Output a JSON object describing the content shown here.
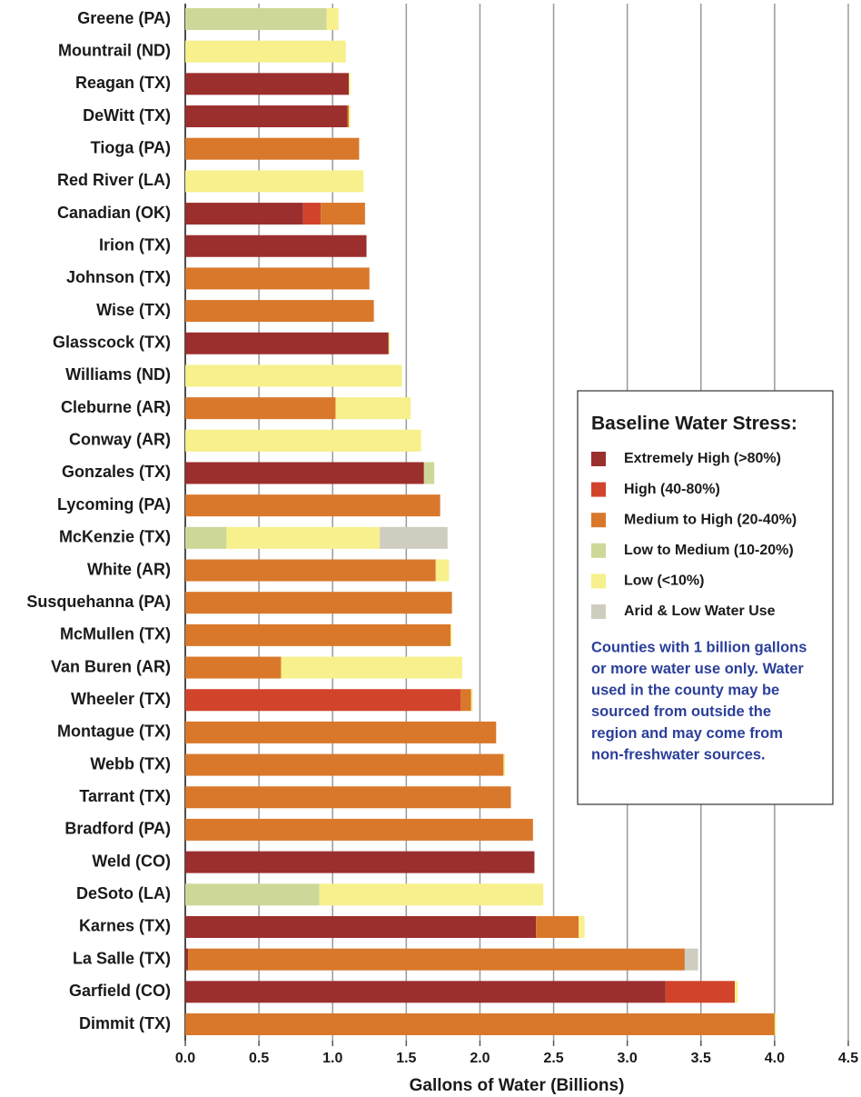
{
  "chart_data": {
    "type": "stacked_barh",
    "x_label": "Gallons of Water (Billions)",
    "legend_title": "Baseline Water Stress:",
    "legend_position": "right",
    "annotation_lines": [
      "Counties with 1 billion gallons",
      "or more water use only. Water",
      "used in the county may be",
      "sourced from outside the",
      "region and may come from",
      "non-freshwater sources."
    ],
    "categories": [
      "Greene (PA)",
      "Mountrail (ND)",
      "Reagan (TX)",
      "DeWitt (TX)",
      "Tioga (PA)",
      "Red River (LA)",
      "Canadian (OK)",
      "Irion (TX)",
      "Johnson (TX)",
      "Wise (TX)",
      "Glasscock (TX)",
      "Williams (ND)",
      "Cleburne (AR)",
      "Conway (AR)",
      "Gonzales (TX)",
      "Lycoming (PA)",
      "McKenzie (TX)",
      "White (AR)",
      "Susquehanna (PA)",
      "McMullen (TX)",
      "Van Buren (AR)",
      "Wheeler (TX)",
      "Montague (TX)",
      "Webb (TX)",
      "Tarrant (TX)",
      "Bradford (PA)",
      "Weld (CO)",
      "DeSoto (LA)",
      "Karnes (TX)",
      "La Salle (TX)",
      "Garfield (CO)",
      "Dimmit (TX)"
    ],
    "series": [
      {
        "name": "Extremely High (>80%)",
        "color": "#9b2f2e",
        "values": [
          null,
          null,
          1.11,
          1.1,
          null,
          null,
          0.8,
          1.23,
          null,
          null,
          1.38,
          null,
          null,
          null,
          1.62,
          null,
          null,
          null,
          null,
          null,
          null,
          null,
          null,
          null,
          null,
          null,
          2.37,
          null,
          2.38,
          0.02,
          3.26,
          null
        ]
      },
      {
        "name": "High (40-80%)",
        "color": "#d2432b",
        "values": [
          null,
          null,
          null,
          null,
          null,
          null,
          0.12,
          null,
          null,
          null,
          null,
          null,
          null,
          null,
          null,
          null,
          null,
          null,
          null,
          null,
          null,
          1.87,
          null,
          null,
          null,
          null,
          null,
          null,
          null,
          null,
          0.47,
          null
        ]
      },
      {
        "name": "Medium to High (20-40%)",
        "color": "#d9782b",
        "values": [
          null,
          null,
          null,
          0.01,
          1.18,
          null,
          0.3,
          null,
          1.25,
          1.28,
          null,
          null,
          1.02,
          null,
          null,
          1.73,
          null,
          1.7,
          1.81,
          1.8,
          0.65,
          0.07,
          2.11,
          2.16,
          2.21,
          2.36,
          null,
          null,
          0.29,
          3.37,
          null,
          4.0
        ]
      },
      {
        "name": "Low to Medium (10-20%)",
        "color": "#cdd898",
        "values": [
          0.96,
          null,
          null,
          null,
          null,
          null,
          null,
          null,
          null,
          null,
          null,
          null,
          null,
          null,
          0.07,
          null,
          0.28,
          null,
          null,
          null,
          null,
          null,
          null,
          null,
          null,
          null,
          null,
          0.91,
          null,
          null,
          null,
          null
        ]
      },
      {
        "name": "Low (<10%)",
        "color": "#f7f08c",
        "values": [
          0.08,
          1.09,
          0.01,
          0.01,
          null,
          1.21,
          null,
          null,
          null,
          null,
          0.01,
          1.47,
          0.51,
          1.6,
          null,
          null,
          1.04,
          0.09,
          null,
          0.01,
          1.23,
          0.01,
          null,
          0.01,
          null,
          null,
          null,
          1.52,
          0.04,
          null,
          0.02,
          0.01
        ]
      },
      {
        "name": "Arid & Low Water Use",
        "color": "#cfcdbf",
        "values": [
          null,
          null,
          null,
          null,
          null,
          null,
          null,
          null,
          null,
          null,
          null,
          null,
          null,
          null,
          null,
          null,
          0.46,
          null,
          null,
          null,
          null,
          null,
          null,
          null,
          null,
          null,
          null,
          null,
          null,
          0.09,
          null,
          null
        ]
      }
    ],
    "xlim": [
      0,
      4.5
    ],
    "xticks": [
      {
        "value": 0,
        "label": "0.0"
      },
      0.5,
      {
        "value": 1,
        "label": "1.0"
      },
      1.5,
      {
        "value": 2,
        "label": "2.0"
      },
      2.5,
      {
        "value": 3,
        "label": "3.0"
      },
      3.5,
      {
        "value": 4,
        "label": "4.0"
      },
      4.5
    ],
    "grid": true
  }
}
